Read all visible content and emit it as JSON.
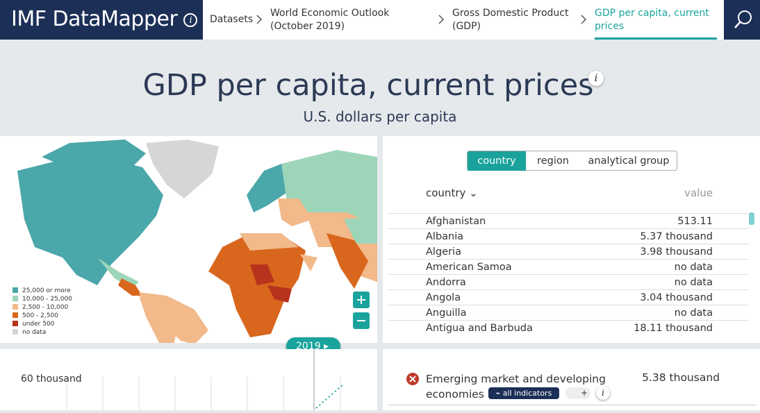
{
  "header": {
    "brand": "IMF DataMapper",
    "breadcrumbs": [
      "Datasets",
      "World Economic Outlook (October 2019)",
      "Gross Domestic Product (GDP)",
      "GDP per capita, current prices"
    ]
  },
  "icons": {
    "info": "i",
    "plus": "+"
  },
  "title": "GDP per capita, current prices",
  "subtitle": "U.S. dollars per capita",
  "map": {
    "legend": [
      {
        "label": "25,000 or more",
        "color": "#4aa7aa"
      },
      {
        "label": "10,000 - 25,000",
        "color": "#9dd5b9"
      },
      {
        "label": "2,500 - 10,000",
        "color": "#f2b98a"
      },
      {
        "label": "500 - 2,500",
        "color": "#d9661d"
      },
      {
        "label": "under 500",
        "color": "#b8321c"
      },
      {
        "label": "no data",
        "color": "#d6d6d6"
      }
    ],
    "year": "2019"
  },
  "table": {
    "tabs": [
      "country",
      "region",
      "analytical group"
    ],
    "columns": [
      "country",
      "value"
    ],
    "rows": [
      [
        "Afghanistan",
        "513.11"
      ],
      [
        "Albania",
        "5.37 thousand"
      ],
      [
        "Algeria",
        "3.98 thousand"
      ],
      [
        "American Samoa",
        "no data"
      ],
      [
        "Andorra",
        "no data"
      ],
      [
        "Angola",
        "3.04 thousand"
      ],
      [
        "Anguilla",
        "no data"
      ],
      [
        "Antigua and Barbuda",
        "18.11 thousand"
      ]
    ]
  },
  "chart": {
    "ytick": "60 thousand"
  },
  "selection": {
    "name": "Emerging market and developing economies",
    "value": "5.38 thousand",
    "button": "all indicators"
  }
}
